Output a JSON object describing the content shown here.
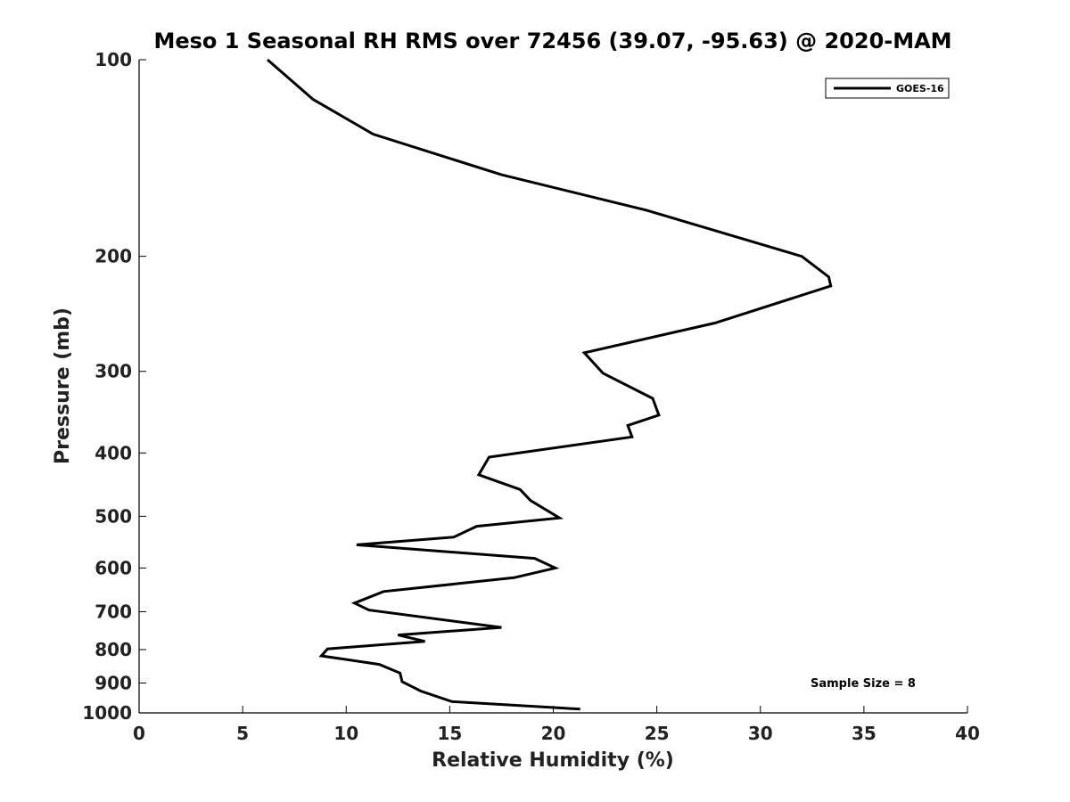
{
  "chart_data": {
    "type": "line",
    "title": "Meso 1 Seasonal RH RMS over 72456 (39.07, -95.63) @ 2020-MAM",
    "xlabel": "Relative Humidity (%)",
    "ylabel": "Pressure (mb)",
    "xlim": [
      0,
      40
    ],
    "ylim": [
      100,
      1000
    ],
    "y_scale": "log",
    "y_reversed": true,
    "x_ticks": [
      "0",
      "5",
      "10",
      "15",
      "20",
      "25",
      "30",
      "35",
      "40"
    ],
    "y_ticks": [
      "100",
      "200",
      "300",
      "400",
      "500",
      "600",
      "700",
      "800",
      "900",
      "1000"
    ],
    "grid": false,
    "legend_position": "top-right",
    "series": [
      {
        "name": "GOES-16",
        "color": "#000000",
        "x": [
          6.2,
          8.4,
          11.3,
          17.5,
          24.5,
          32.0,
          33.3,
          33.4,
          27.8,
          21.5,
          22.4,
          24.8,
          25.1,
          23.6,
          23.8,
          16.9,
          16.4,
          18.4,
          18.9,
          20.3,
          16.3,
          15.2,
          10.5,
          19.1,
          20.1,
          18.1,
          11.8,
          10.4,
          11.1,
          17.5,
          12.5,
          13.8,
          9.1,
          8.8,
          11.6,
          12.6,
          12.7,
          13.6,
          15.1,
          21.3
        ],
        "y": [
          100,
          115,
          130,
          150,
          170,
          200,
          215,
          222,
          253,
          281,
          302,
          330,
          350,
          363,
          378,
          406,
          432,
          455,
          473,
          503,
          518,
          538,
          553,
          580,
          600,
          621,
          652,
          679,
          696,
          740,
          760,
          777,
          798,
          818,
          843,
          869,
          896,
          926,
          961,
          987
        ]
      }
    ],
    "annotations": [
      "Sample Size = 8"
    ]
  }
}
